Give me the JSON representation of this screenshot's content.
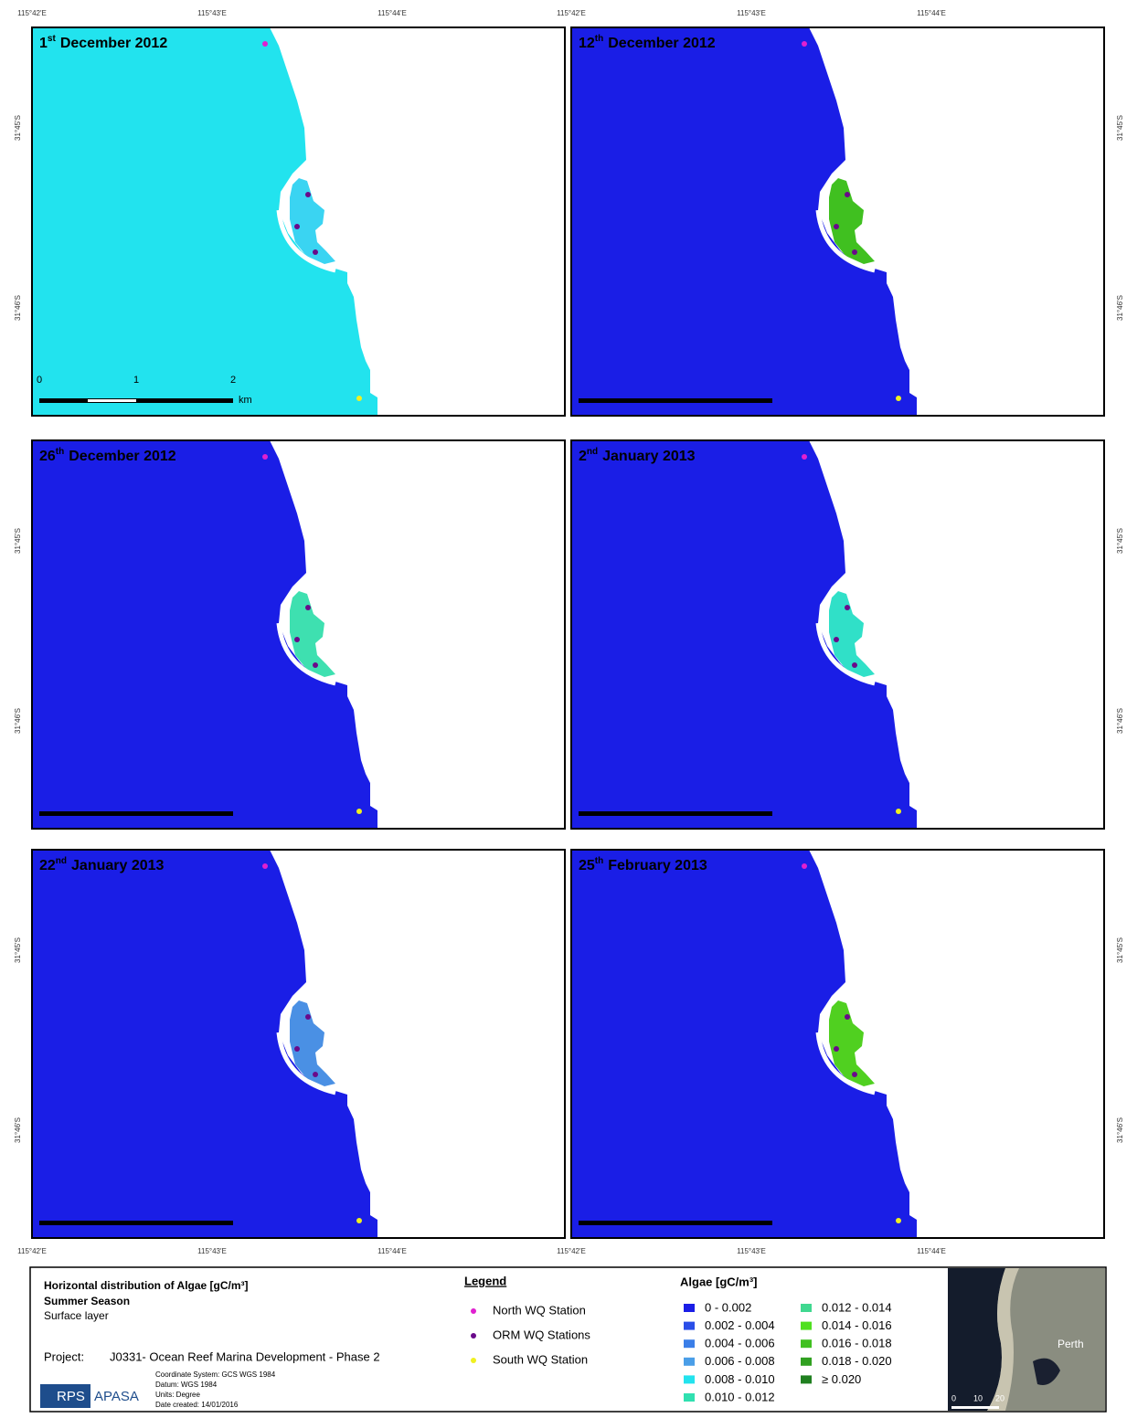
{
  "panels": [
    {
      "title": {
        "day": "1",
        "suffix": "st",
        "month_year": "December 2012"
      },
      "ocean_color": "#22e3ee",
      "marina_color": "#3ad4f2"
    },
    {
      "title": {
        "day": "12",
        "suffix": "th",
        "month_year": "December 2012"
      },
      "ocean_color": "#1a1ee6",
      "marina_color": "#40c020"
    },
    {
      "title": {
        "day": "26",
        "suffix": "th",
        "month_year": "December 2012"
      },
      "ocean_color": "#1a1ee6",
      "marina_color": "#3ee0b0"
    },
    {
      "title": {
        "day": "2",
        "suffix": "nd",
        "month_year": "January 2013"
      },
      "ocean_color": "#1a1ee6",
      "marina_color": "#30e0c8"
    },
    {
      "title": {
        "day": "22",
        "suffix": "nd",
        "month_year": "January 2013"
      },
      "ocean_color": "#1a1ee6",
      "marina_color": "#4a90e4"
    },
    {
      "title": {
        "day": "25",
        "suffix": "th",
        "month_year": "February 2013"
      },
      "ocean_color": "#1a1ee6",
      "marina_color": "#50d020"
    }
  ],
  "longitude_labels": [
    "115°42'E",
    "115°43'E",
    "115°44'E"
  ],
  "latitude_labels": [
    "31°45'S",
    "31°46'S"
  ],
  "scale_bar": {
    "labels": [
      "0",
      "1",
      "2"
    ],
    "unit": "km"
  },
  "title_block": {
    "title": "Horizontal distribution of Algae [gC/m³]",
    "season": "Summer Season",
    "layer": "Surface layer",
    "project_label": "Project:",
    "project": "J0331- Ocean Reef Marina Development - Phase 2",
    "metadata": [
      "Coordinate System: GCS WGS 1984",
      "Datum: WGS 1984",
      "Units: Degree",
      "Date created: 14/01/2016"
    ],
    "logo": [
      "RPS",
      "APASA"
    ]
  },
  "legend": {
    "title": "Legend",
    "items": [
      {
        "label": "North WQ Station",
        "color": "#e020d0"
      },
      {
        "label": "ORM WQ Stations",
        "color": "#6a0a8a"
      },
      {
        "label": "South WQ Station",
        "color": "#f0f020"
      }
    ]
  },
  "algae_legend": {
    "title": "Algae [gC/m³]",
    "classes": [
      {
        "label": "0 - 0.002",
        "color": "#1a1ee6"
      },
      {
        "label": "0.002 - 0.004",
        "color": "#2a4ee8"
      },
      {
        "label": "0.004 - 0.006",
        "color": "#3a7ee8"
      },
      {
        "label": "0.006 - 0.008",
        "color": "#4a9ee8"
      },
      {
        "label": "0.008 - 0.010",
        "color": "#22e3ee"
      },
      {
        "label": "0.010 - 0.012",
        "color": "#30e0b0"
      },
      {
        "label": "0.012 - 0.014",
        "color": "#40d890"
      },
      {
        "label": "0.014 - 0.016",
        "color": "#50e020"
      },
      {
        "label": "0.016 - 0.018",
        "color": "#40c020"
      },
      {
        "label": "0.018 - 0.020",
        "color": "#30a020"
      },
      {
        "label": "≥ 0.020",
        "color": "#208020"
      }
    ]
  },
  "inset": {
    "place": "Perth",
    "scale_labels": [
      "0",
      "10",
      "20"
    ]
  }
}
